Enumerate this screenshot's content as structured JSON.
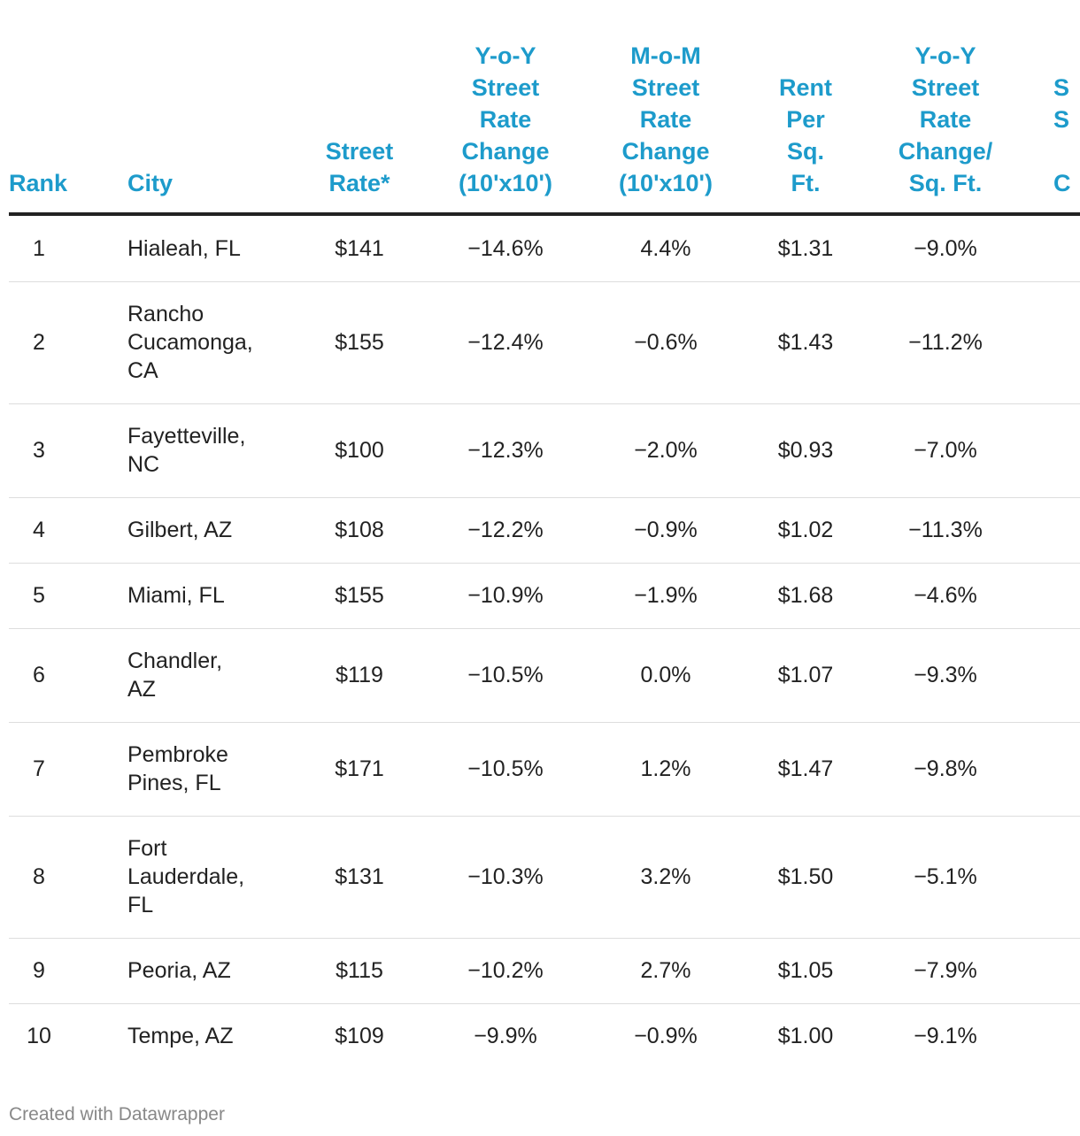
{
  "header": {
    "columns": [
      {
        "lines": [
          "Rank"
        ]
      },
      {
        "lines": [
          "City"
        ]
      },
      {
        "lines": [
          "Street",
          "Rate*"
        ]
      },
      {
        "lines": [
          "Y-o-Y",
          "Street",
          "Rate",
          "Change",
          "(10'x10')"
        ]
      },
      {
        "lines": [
          "M-o-M",
          "Street",
          "Rate",
          "Change",
          "(10'x10')"
        ]
      },
      {
        "lines": [
          "Rent",
          "Per",
          "Sq.",
          "Ft."
        ]
      },
      {
        "lines": [
          "Y-o-Y",
          "Street",
          "Rate",
          "Change/",
          "Sq. Ft."
        ]
      },
      {
        "lines": [
          "S",
          "S",
          "C"
        ]
      }
    ]
  },
  "table": {
    "rows": [
      [
        "1",
        [
          "Hialeah, FL"
        ],
        "$141",
        "−14.6%",
        "4.4%",
        "$1.31",
        "−9.0%"
      ],
      [
        "2",
        [
          "Rancho",
          "Cucamonga,",
          "CA"
        ],
        "$155",
        "−12.4%",
        "−0.6%",
        "$1.43",
        "−11.2%"
      ],
      [
        "3",
        [
          "Fayetteville,",
          "NC"
        ],
        "$100",
        "−12.3%",
        "−2.0%",
        "$0.93",
        "−7.0%"
      ],
      [
        "4",
        [
          "Gilbert, AZ"
        ],
        "$108",
        "−12.2%",
        "−0.9%",
        "$1.02",
        "−11.3%"
      ],
      [
        "5",
        [
          "Miami, FL"
        ],
        "$155",
        "−10.9%",
        "−1.9%",
        "$1.68",
        "−4.6%"
      ],
      [
        "6",
        [
          "Chandler,",
          "AZ"
        ],
        "$119",
        "−10.5%",
        "0.0%",
        "$1.07",
        "−9.3%"
      ],
      [
        "7",
        [
          "Pembroke",
          "Pines, FL"
        ],
        "$171",
        "−10.5%",
        "1.2%",
        "$1.47",
        "−9.8%"
      ],
      [
        "8",
        [
          "Fort",
          "Lauderdale,",
          "FL"
        ],
        "$131",
        "−10.3%",
        "3.2%",
        "$1.50",
        "−5.1%"
      ],
      [
        "9",
        [
          "Peoria, AZ"
        ],
        "$115",
        "−10.2%",
        "2.7%",
        "$1.05",
        "−7.9%"
      ],
      [
        "10",
        [
          "Tempe, AZ"
        ],
        "$109",
        "−9.9%",
        "−0.9%",
        "$1.00",
        "−9.1%"
      ]
    ]
  },
  "footer": "Created with Datawrapper"
}
